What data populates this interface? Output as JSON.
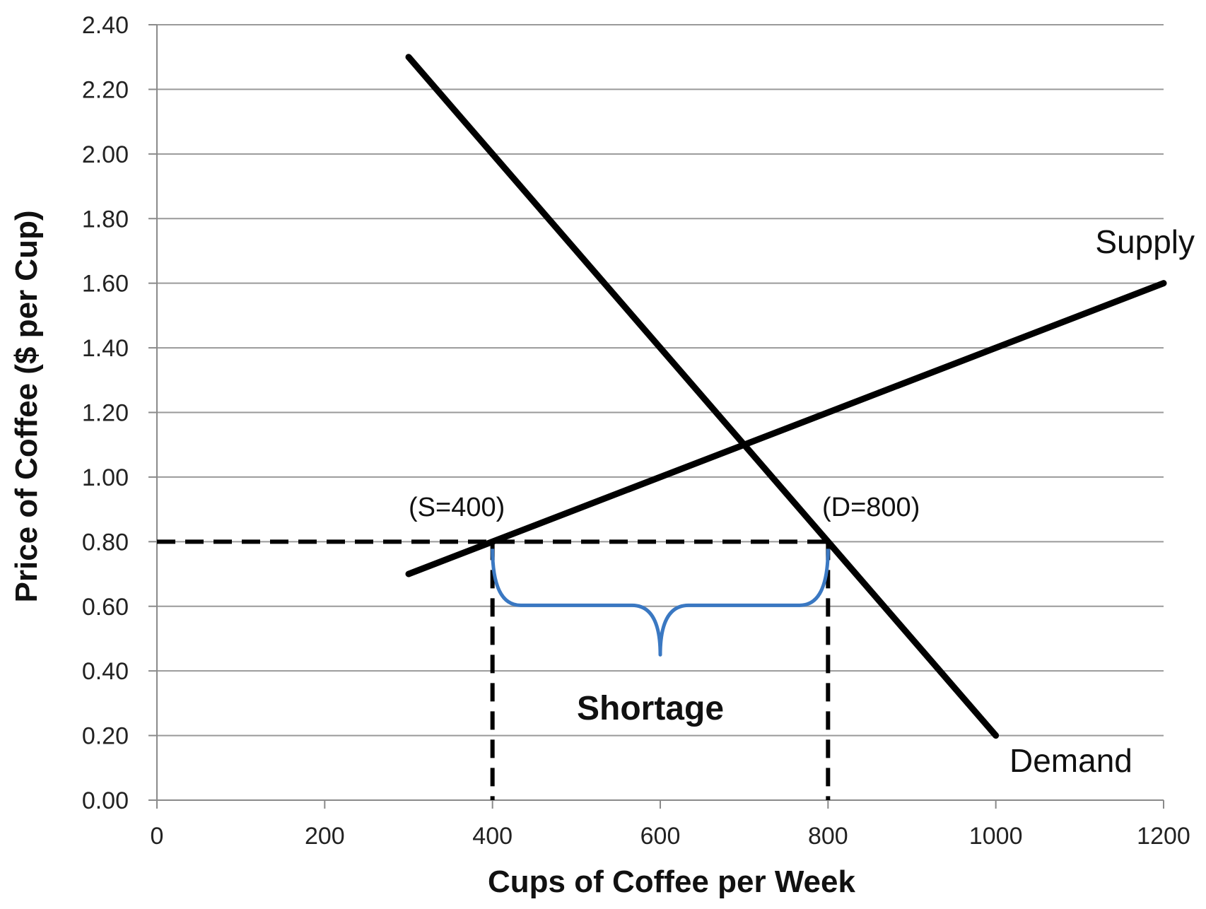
{
  "chart_data": {
    "type": "line",
    "xlabel": "Cups of Coffee per Week",
    "ylabel": "Price of Coffee ($ per Cup)",
    "xlim": [
      0,
      1200
    ],
    "ylim": [
      0,
      2.4
    ],
    "x_ticks": [
      0,
      200,
      400,
      600,
      800,
      1000,
      1200
    ],
    "x_tick_labels": [
      "0",
      "200",
      "400",
      "600",
      "800",
      "1000",
      "1200"
    ],
    "y_ticks": [
      0,
      0.2,
      0.4,
      0.6,
      0.8,
      1.0,
      1.2,
      1.4,
      1.6,
      1.8,
      2.0,
      2.2,
      2.4
    ],
    "y_tick_labels": [
      "0.00",
      "0.20",
      "0.40",
      "0.60",
      "0.80",
      "1.00",
      "1.20",
      "1.40",
      "1.60",
      "1.80",
      "2.00",
      "2.20",
      "2.40"
    ],
    "grid": true,
    "series": [
      {
        "name": "Demand",
        "x": [
          300,
          1000
        ],
        "y": [
          2.3,
          0.2
        ],
        "color": "#000000"
      },
      {
        "name": "Supply",
        "x": [
          300,
          1200
        ],
        "y": [
          0.7,
          1.6
        ],
        "color": "#000000"
      }
    ],
    "price_ceiling": {
      "price": 0.8,
      "quantity_supplied": 400,
      "quantity_demanded": 800,
      "supplied_label": "(S=400)",
      "demanded_label": "(D=800)"
    },
    "shortage": {
      "label": "Shortage",
      "from": 400,
      "to": 800,
      "brace_color": "#3a78c2"
    }
  }
}
